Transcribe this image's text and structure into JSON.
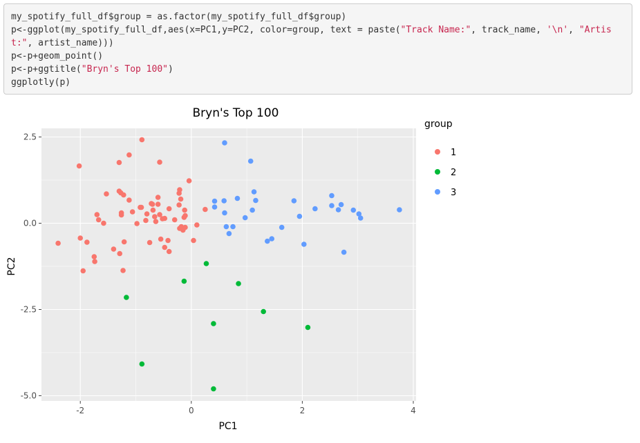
{
  "code": {
    "lines": [
      [
        {
          "t": "my_spotify_full_df$group = as.factor(my_spotify_full_df$group)",
          "s": false
        }
      ],
      [
        {
          "t": "p<-ggplot(my_spotify_full_df,aes(x=PC1,y=PC2, color=group, text = paste(",
          "s": false
        },
        {
          "t": "\"Track Name:\"",
          "s": true
        },
        {
          "t": ", track_name, ",
          "s": false
        },
        {
          "t": "'\\n'",
          "s": true
        },
        {
          "t": ", ",
          "s": false
        },
        {
          "t": "\"Artis",
          "s": true
        }
      ],
      [
        {
          "t": "t:\"",
          "s": true
        },
        {
          "t": ", artist_name)))",
          "s": false
        }
      ],
      [
        {
          "t": "p<-p+geom_point()",
          "s": false
        }
      ],
      [
        {
          "t": "p<-p+ggtitle(",
          "s": false
        },
        {
          "t": "\"Bryn's Top 100\"",
          "s": true
        },
        {
          "t": ")",
          "s": false
        }
      ],
      [
        {
          "t": "ggplotly(p)",
          "s": false
        }
      ]
    ]
  },
  "colors": {
    "panel_bg": "#ebebeb",
    "grid": "#ffffff",
    "group1": "#f8766d",
    "group2": "#00ba38",
    "group3": "#619cff",
    "string": "#c7254e"
  },
  "chart_data": {
    "type": "scatter",
    "title": "Bryn's Top 100",
    "xlabel": "PC1",
    "ylabel": "PC2",
    "xlim": [
      -2.7,
      4.05
    ],
    "ylim": [
      -5.15,
      2.75
    ],
    "x_ticks": [
      -2,
      0,
      2,
      4
    ],
    "y_ticks": [
      2.5,
      0.0,
      -2.5,
      -5.0
    ],
    "x_tick_labels": [
      "-2",
      "0",
      "2",
      "4"
    ],
    "y_tick_labels": [
      "2.5",
      "0.0",
      "-2.5",
      "-5.0"
    ],
    "grid": true,
    "legend_title": "group",
    "legend_position": "right",
    "series": [
      {
        "name": "1",
        "points": [
          [
            -2.02,
            1.66
          ],
          [
            -2.4,
            -0.58
          ],
          [
            -2.0,
            -0.43
          ],
          [
            -1.95,
            -1.38
          ],
          [
            -1.88,
            -0.55
          ],
          [
            -1.75,
            -0.97
          ],
          [
            -1.74,
            -1.11
          ],
          [
            -1.7,
            0.25
          ],
          [
            -1.67,
            0.1
          ],
          [
            -1.58,
            0.0
          ],
          [
            -1.53,
            0.85
          ],
          [
            -1.4,
            -0.75
          ],
          [
            -1.3,
            0.93
          ],
          [
            -1.3,
            1.76
          ],
          [
            -1.27,
            0.88
          ],
          [
            -1.26,
            0.3
          ],
          [
            -1.26,
            0.24
          ],
          [
            -1.29,
            -0.88
          ],
          [
            -1.23,
            -1.37
          ],
          [
            -1.21,
            -0.54
          ],
          [
            -1.22,
            0.82
          ],
          [
            -1.12,
            0.67
          ],
          [
            -1.12,
            1.98
          ],
          [
            -1.06,
            0.33
          ],
          [
            -0.98,
            -0.01
          ],
          [
            -0.92,
            0.46
          ],
          [
            -0.9,
            0.46
          ],
          [
            -0.89,
            2.42
          ],
          [
            -0.82,
            0.08
          ],
          [
            -0.8,
            0.27
          ],
          [
            -0.75,
            -0.56
          ],
          [
            -0.72,
            0.57
          ],
          [
            -0.7,
            0.55
          ],
          [
            -0.69,
            0.38
          ],
          [
            -0.66,
            0.19
          ],
          [
            -0.64,
            0.05
          ],
          [
            -0.6,
            0.55
          ],
          [
            -0.6,
            0.75
          ],
          [
            -0.57,
            1.77
          ],
          [
            -0.57,
            0.25
          ],
          [
            -0.55,
            -0.46
          ],
          [
            -0.52,
            0.13
          ],
          [
            -0.48,
            0.14
          ],
          [
            -0.48,
            -0.7
          ],
          [
            -0.42,
            -0.5
          ],
          [
            -0.4,
            -0.82
          ],
          [
            -0.4,
            0.42
          ],
          [
            -0.3,
            0.1
          ],
          [
            -0.22,
            0.53
          ],
          [
            -0.22,
            0.87
          ],
          [
            -0.21,
            0.97
          ],
          [
            -0.21,
            -0.15
          ],
          [
            -0.19,
            0.7
          ],
          [
            -0.18,
            -0.1
          ],
          [
            -0.15,
            -0.2
          ],
          [
            -0.13,
            0.17
          ],
          [
            -0.12,
            0.38
          ],
          [
            -0.11,
            -0.12
          ],
          [
            -0.11,
            0.22
          ],
          [
            -0.04,
            1.23
          ],
          [
            0.04,
            -0.5
          ],
          [
            0.1,
            -0.05
          ],
          [
            0.25,
            0.4
          ]
        ]
      },
      {
        "name": "2",
        "points": [
          [
            -1.17,
            -2.15
          ],
          [
            -0.89,
            -4.08
          ],
          [
            -0.13,
            -1.68
          ],
          [
            0.27,
            -1.17
          ],
          [
            0.4,
            -2.91
          ],
          [
            0.4,
            -4.8
          ],
          [
            0.85,
            -1.75
          ],
          [
            1.3,
            -2.56
          ],
          [
            2.1,
            -3.02
          ]
        ]
      },
      {
        "name": "3",
        "points": [
          [
            0.42,
            0.64
          ],
          [
            0.42,
            0.47
          ],
          [
            0.59,
            0.65
          ],
          [
            0.6,
            2.33
          ],
          [
            0.6,
            0.3
          ],
          [
            0.63,
            -0.1
          ],
          [
            0.68,
            -0.3
          ],
          [
            0.75,
            -0.1
          ],
          [
            0.83,
            0.72
          ],
          [
            0.97,
            0.16
          ],
          [
            1.07,
            1.8
          ],
          [
            1.1,
            0.38
          ],
          [
            1.13,
            0.91
          ],
          [
            1.16,
            0.66
          ],
          [
            1.37,
            -0.52
          ],
          [
            1.45,
            -0.45
          ],
          [
            1.63,
            -0.12
          ],
          [
            1.85,
            0.65
          ],
          [
            1.95,
            0.2
          ],
          [
            2.03,
            -0.61
          ],
          [
            2.23,
            0.42
          ],
          [
            2.53,
            0.8
          ],
          [
            2.53,
            0.51
          ],
          [
            2.65,
            0.39
          ],
          [
            2.7,
            0.54
          ],
          [
            2.75,
            -0.84
          ],
          [
            2.92,
            0.38
          ],
          [
            3.02,
            0.27
          ],
          [
            3.05,
            0.15
          ],
          [
            3.75,
            0.39
          ]
        ]
      }
    ]
  }
}
